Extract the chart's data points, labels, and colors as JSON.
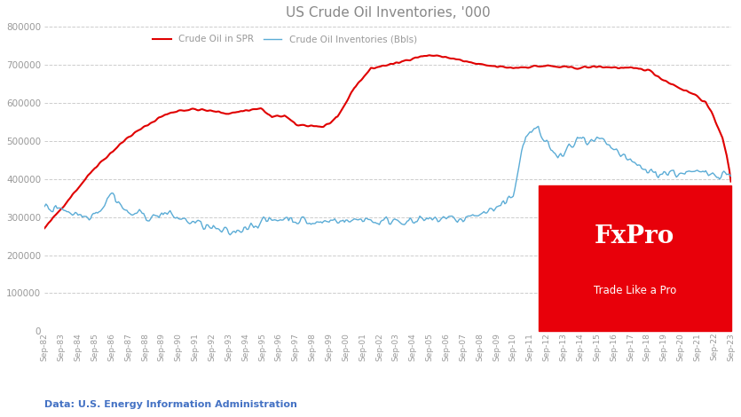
{
  "title": "US Crude Oil Inventories, '000",
  "spr_color": "#e00000",
  "inv_color": "#5bacd6",
  "background_color": "#ffffff",
  "grid_color": "#c8c8c8",
  "title_color": "#888888",
  "label_color": "#999999",
  "source_text": "Data: U.S. Energy Information Administration",
  "source_color": "#4472c4",
  "fxpro_bg": "#e8000a",
  "legend_spr": "Crude Oil in SPR",
  "legend_inv": "Crude Oil Inventories (Bbls)",
  "ylim": [
    0,
    800000
  ],
  "yticks": [
    0,
    100000,
    200000,
    300000,
    400000,
    500000,
    600000,
    700000,
    800000
  ]
}
